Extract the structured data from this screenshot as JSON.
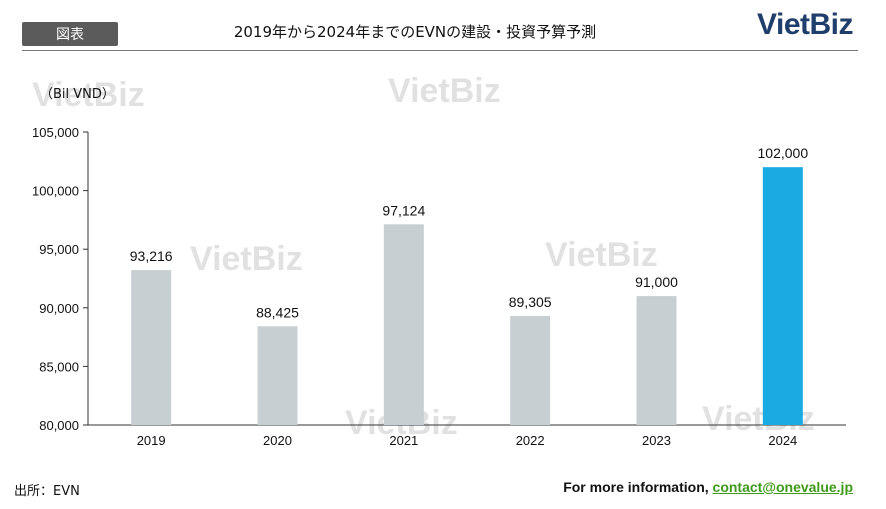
{
  "header": {
    "tag": "図表",
    "title": "2019年から2024年までのEVNの建設・投資予算予測",
    "logo": "VietBiz"
  },
  "watermark": "VietBiz",
  "footer": {
    "source": "出所：EVN",
    "info_prefix": "For more information, ",
    "contact": "contact@onevalue.jp"
  },
  "colors": {
    "bar": "#c8cfd2",
    "highlight_bar": "#1aabe3",
    "logo": "#1f3e6b",
    "link": "#3f9a1c"
  },
  "chart_data": {
    "type": "bar",
    "unit_label": "（Bil VND）",
    "categories": [
      "2019",
      "2020",
      "2021",
      "2022",
      "2023",
      "2024"
    ],
    "values": [
      93216,
      88425,
      97124,
      89305,
      91000,
      102000
    ],
    "value_labels": [
      "93,216",
      "88,425",
      "97,124",
      "89,305",
      "91,000",
      "102,000"
    ],
    "highlight_index": 5,
    "ylim": [
      80000,
      105000
    ],
    "yticks": [
      80000,
      85000,
      90000,
      95000,
      100000,
      105000
    ],
    "ytick_labels": [
      "80,000",
      "85,000",
      "90,000",
      "95,000",
      "100,000",
      "105,000"
    ],
    "grid": false
  }
}
